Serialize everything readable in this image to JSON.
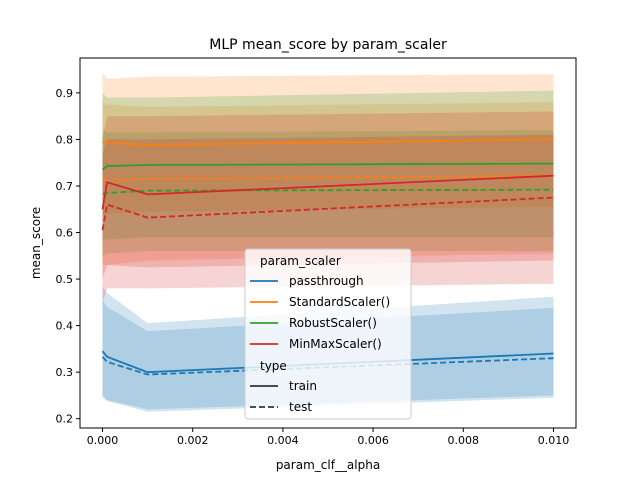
{
  "chart_data": {
    "type": "line",
    "title": "MLP mean_score by param_scaler",
    "xlabel": "param_clf__alpha",
    "ylabel": "mean_score",
    "xlim": [
      -0.0005,
      0.0105
    ],
    "ylim": [
      0.18,
      0.975
    ],
    "xticks": [
      0.0,
      0.002,
      0.004,
      0.006,
      0.008,
      0.01
    ],
    "xtick_labels": [
      "0.000",
      "0.002",
      "0.004",
      "0.006",
      "0.008",
      "0.010"
    ],
    "yticks": [
      0.2,
      0.3,
      0.4,
      0.5,
      0.6,
      0.7,
      0.8,
      0.9
    ],
    "ytick_labels": [
      "0.2",
      "0.3",
      "0.4",
      "0.5",
      "0.6",
      "0.7",
      "0.8",
      "0.9"
    ],
    "x": [
      0.0,
      0.0001,
      0.001,
      0.01
    ],
    "grid": false,
    "legend": {
      "position": "lower-center",
      "hue_title": "param_scaler",
      "style_title": "type",
      "style_entries": [
        {
          "label": "train",
          "dash": "solid"
        },
        {
          "label": "test",
          "dash": "dashed"
        }
      ]
    },
    "series": [
      {
        "name": "passthrough",
        "color": "#1f77b4",
        "train": {
          "values": [
            0.345,
            0.333,
            0.3,
            0.34
          ],
          "lower": [
            0.245,
            0.238,
            0.215,
            0.245
          ],
          "upper": [
            0.455,
            0.44,
            0.388,
            0.438
          ]
        },
        "test": {
          "values": [
            0.333,
            0.322,
            0.295,
            0.33
          ],
          "lower": [
            0.25,
            0.24,
            0.22,
            0.25
          ],
          "upper": [
            0.485,
            0.47,
            0.405,
            0.462
          ]
        }
      },
      {
        "name": "StandardScaler()",
        "color": "#ff7f0e",
        "train": {
          "values": [
            0.795,
            0.793,
            0.788,
            0.8
          ],
          "lower": [
            0.64,
            0.64,
            0.645,
            0.655
          ],
          "upper": [
            0.945,
            0.93,
            0.935,
            0.94
          ]
        },
        "test": {
          "values": [
            0.713,
            0.713,
            0.715,
            0.722
          ],
          "lower": [
            0.53,
            0.53,
            0.54,
            0.555
          ],
          "upper": [
            0.88,
            0.875,
            0.87,
            0.88
          ]
        }
      },
      {
        "name": "RobustScaler()",
        "color": "#2ca02c",
        "train": {
          "values": [
            0.735,
            0.743,
            0.745,
            0.748
          ],
          "lower": [
            0.58,
            0.585,
            0.59,
            0.59
          ],
          "upper": [
            0.9,
            0.89,
            0.89,
            0.905
          ]
        },
        "test": {
          "values": [
            0.683,
            0.685,
            0.69,
            0.692
          ],
          "lower": [
            0.55,
            0.555,
            0.56,
            0.56
          ],
          "upper": [
            0.82,
            0.815,
            0.815,
            0.82
          ]
        }
      },
      {
        "name": "MinMaxScaler()",
        "color": "#d62728",
        "train": {
          "values": [
            0.65,
            0.708,
            0.682,
            0.722
          ],
          "lower": [
            0.5,
            0.53,
            0.525,
            0.54
          ],
          "upper": [
            0.8,
            0.85,
            0.85,
            0.86
          ]
        },
        "test": {
          "values": [
            0.605,
            0.66,
            0.632,
            0.675
          ],
          "lower": [
            0.45,
            0.48,
            0.48,
            0.49
          ],
          "upper": [
            0.77,
            0.8,
            0.8,
            0.81
          ]
        }
      }
    ]
  }
}
